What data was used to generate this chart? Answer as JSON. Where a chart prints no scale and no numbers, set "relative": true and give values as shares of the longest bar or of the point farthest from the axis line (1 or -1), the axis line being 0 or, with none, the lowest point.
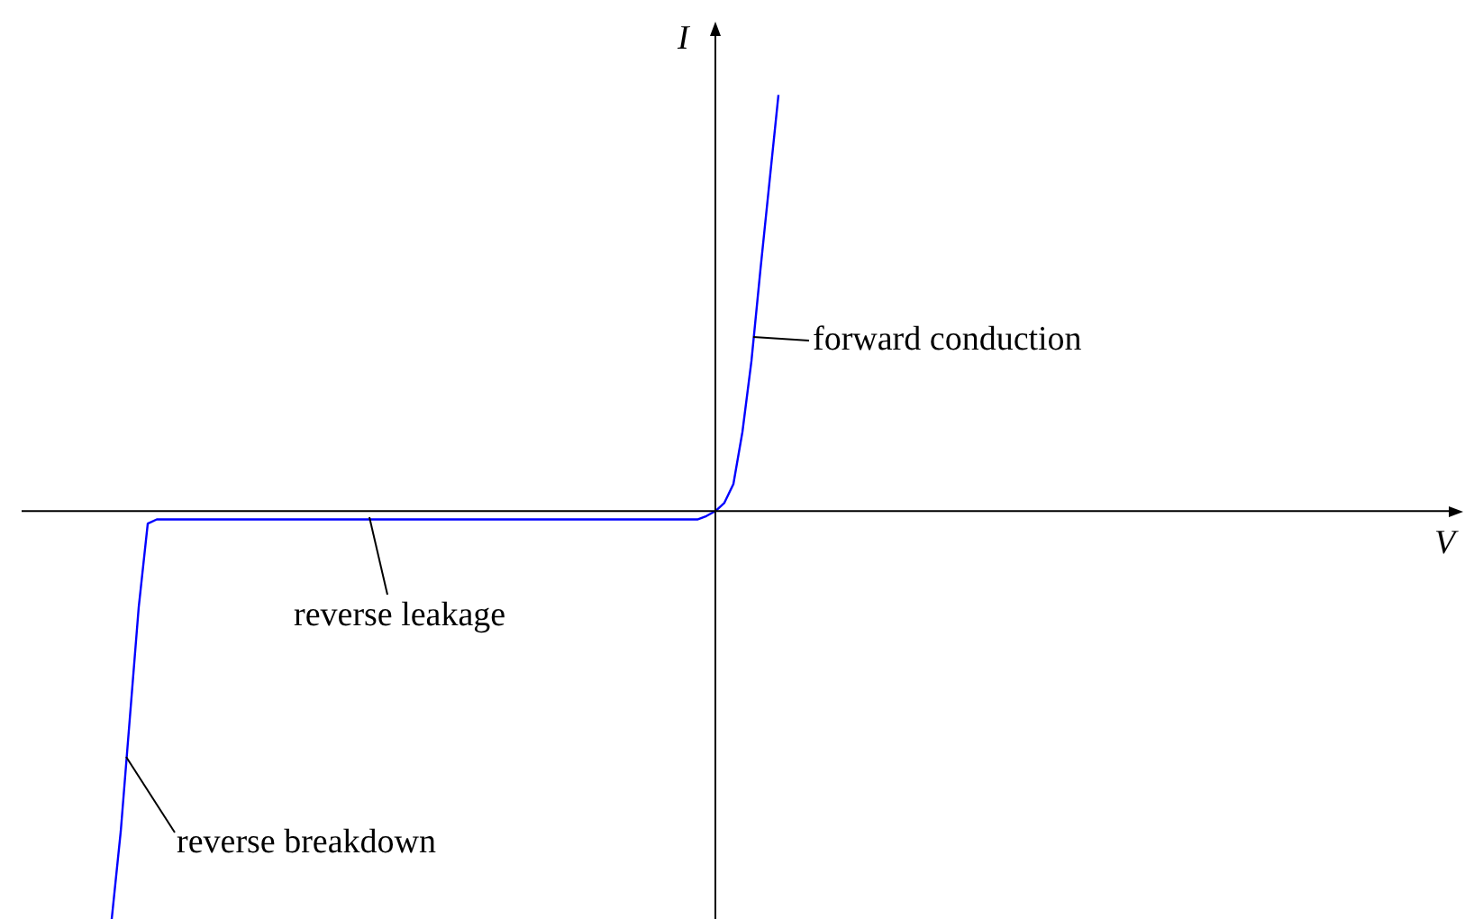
{
  "chart_data": {
    "type": "line",
    "relative": true,
    "xlabel": "V",
    "ylabel": "I",
    "marker": "none",
    "line_style": "solid",
    "annotations": [
      "forward conduction",
      "reverse leakage",
      "reverse breakdown"
    ],
    "categories": [
      null,
      null,
      null,
      null,
      null,
      null,
      null,
      null,
      null,
      null,
      null,
      null,
      null,
      null,
      null,
      null,
      null,
      null,
      null,
      null,
      null,
      null,
      null,
      null,
      null,
      null,
      null,
      null,
      null,
      null,
      null,
      null,
      null,
      null,
      null,
      null,
      null,
      null,
      null,
      null,
      null,
      null,
      null,
      null,
      null,
      null,
      null,
      null,
      null,
      null,
      null,
      null,
      null,
      null,
      null,
      null,
      null,
      null,
      null,
      null,
      null,
      null,
      null,
      null,
      null,
      null,
      null,
      null,
      null,
      null,
      null,
      null,
      null,
      null,
      null,
      null,
      null,
      null,
      null,
      null,
      null,
      null,
      null,
      null,
      null,
      null,
      null,
      null,
      null,
      null,
      null,
      null,
      null,
      null,
      null,
      null,
      null,
      null,
      null,
      null,
      null,
      null,
      null,
      null,
      null,
      null,
      null,
      null,
      null,
      null,
      null,
      null,
      null,
      null,
      null,
      null,
      null,
      null,
      null,
      null,
      null,
      null,
      null,
      null,
      null,
      null,
      null,
      null,
      null,
      null,
      null,
      null,
      null,
      null,
      null,
      null,
      null,
      null,
      null,
      null,
      null,
      null,
      null,
      null,
      null,
      null,
      null,
      null,
      null,
      null,
      null,
      null,
      null,
      null,
      null,
      null,
      null,
      null,
      null,
      null,
      null
    ],
    "series": [
      {
        "color": "#0000ff",
        "values": [
          null,
          null,
          null,
          null,
          null,
          null,
          null,
          null,
          null,
          null,
          -0.98,
          -0.77,
          -0.5,
          -0.23,
          -0.03,
          -0.02,
          -0.02,
          -0.02,
          -0.02,
          -0.02,
          -0.02,
          -0.02,
          -0.02,
          -0.02,
          -0.02,
          -0.02,
          -0.02,
          -0.02,
          -0.02,
          -0.02,
          -0.02,
          -0.02,
          -0.02,
          -0.02,
          -0.02,
          -0.02,
          -0.02,
          -0.02,
          -0.02,
          -0.02,
          -0.02,
          -0.02,
          -0.02,
          -0.02,
          -0.02,
          -0.02,
          -0.02,
          -0.02,
          -0.02,
          -0.02,
          -0.02,
          -0.02,
          -0.02,
          -0.02,
          -0.02,
          -0.02,
          -0.02,
          -0.02,
          -0.02,
          -0.02,
          -0.02,
          -0.02,
          -0.02,
          -0.02,
          -0.02,
          -0.02,
          -0.02,
          -0.02,
          -0.02,
          -0.02,
          -0.02,
          -0.02,
          -0.02,
          -0.02,
          -0.02,
          -0.02,
          -0.012,
          0,
          0.02,
          0.065,
          0.19,
          0.36,
          0.58,
          0.79,
          1,
          null,
          null,
          null,
          null,
          null,
          null,
          null,
          null,
          null,
          null,
          null,
          null,
          null,
          null,
          null,
          null,
          null,
          null,
          null,
          null,
          null,
          null,
          null,
          null,
          null,
          null,
          null,
          null,
          null,
          null,
          null,
          null,
          null,
          null,
          null,
          null,
          null,
          null,
          null,
          null,
          null,
          null,
          null,
          null,
          null,
          null,
          null,
          null,
          null,
          null,
          null,
          null,
          null,
          null,
          null,
          null,
          null,
          null,
          null,
          null,
          null,
          null,
          null,
          null,
          null,
          null,
          null,
          null,
          null,
          null,
          null,
          null,
          null,
          null,
          null,
          null
        ]
      }
    ]
  }
}
